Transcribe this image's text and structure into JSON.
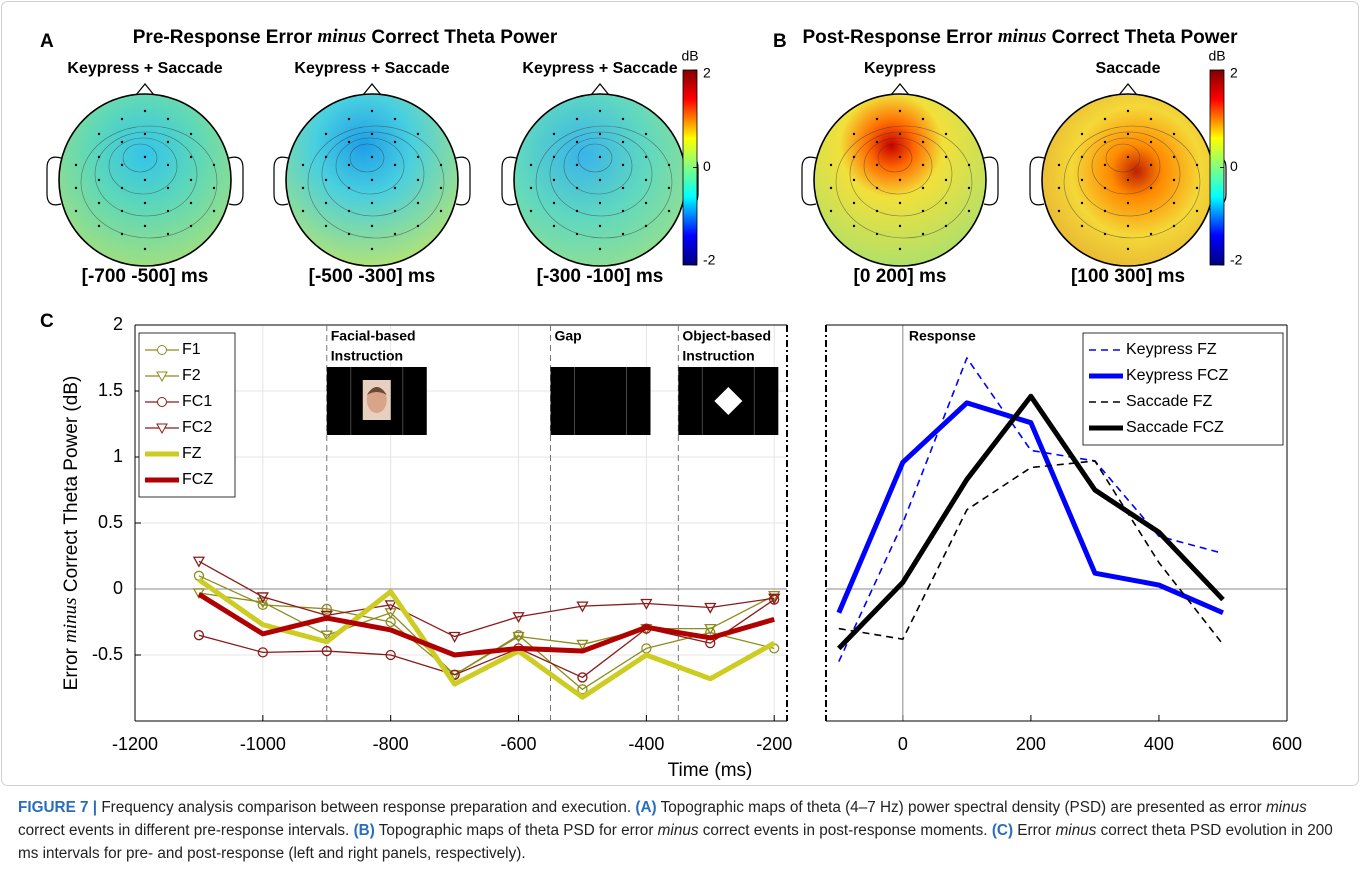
{
  "panels": [
    {
      "label": "A",
      "title": [
        "Pre-Response Error ",
        "minus",
        " Correct Theta Power"
      ],
      "maps": [
        {
          "heading": "Keypress + Saccade",
          "interval": "[-700 -500] ms"
        },
        {
          "heading": "Keypress + Saccade",
          "interval": "[-500 -300] ms"
        },
        {
          "heading": "Keypress + Saccade",
          "interval": "[-300 -100] ms"
        }
      ],
      "colorbar": {
        "unit": "dB",
        "lim": [
          -2,
          2
        ],
        "ticks": [
          2,
          0,
          -2
        ]
      }
    },
    {
      "label": "B",
      "title": [
        "Post-Response Error ",
        "minus",
        " Correct Theta Power"
      ],
      "maps": [
        {
          "heading": "Keypress",
          "interval": "[0 200] ms"
        },
        {
          "heading": "Saccade",
          "interval": "[100 300] ms"
        }
      ],
      "colorbar": {
        "unit": "dB",
        "lim": [
          -2,
          2
        ],
        "ticks": [
          2,
          0,
          -2
        ]
      }
    }
  ],
  "chart_data": [
    {
      "type": "line",
      "panel_label": "C",
      "ylabel": [
        "Error ",
        "minus",
        " Correct Theta Power (dB)"
      ],
      "xlabel": "Time (ms)",
      "xlim": [
        -1200,
        -180
      ],
      "ylim": [
        -1,
        2
      ],
      "xticks": [
        -1200,
        -1000,
        -800,
        -600,
        -400,
        -200
      ],
      "yticks": [
        -0.5,
        0,
        0.5,
        1,
        1.5,
        2
      ],
      "grid": true,
      "legend": "upper left",
      "events": [
        {
          "label": [
            "Facial-based",
            "Instruction"
          ],
          "x": -900
        },
        {
          "label": [
            "Gap"
          ],
          "x": -550
        },
        {
          "label": [
            "Object-based",
            "Instruction"
          ],
          "x": -350
        }
      ],
      "series": [
        {
          "name": "F1",
          "color": "#8c8c1e",
          "marker": "o",
          "linewidth": 1.3,
          "x": [
            -1100,
            -1000,
            -900,
            -800,
            -700,
            -600,
            -500,
            -400,
            -300,
            -200
          ],
          "values": [
            0.1,
            -0.12,
            -0.15,
            -0.25,
            -0.65,
            -0.35,
            -0.76,
            -0.45,
            -0.33,
            -0.45
          ]
        },
        {
          "name": "F2",
          "color": "#8c8c1e",
          "marker": "v",
          "linewidth": 1.3,
          "x": [
            -1100,
            -1000,
            -900,
            -800,
            -700,
            -600,
            -500,
            -400,
            -300,
            -200
          ],
          "values": [
            -0.03,
            -0.1,
            -0.35,
            -0.18,
            -0.65,
            -0.36,
            -0.42,
            -0.3,
            -0.3,
            -0.05
          ]
        },
        {
          "name": "FC1",
          "color": "#8b1a1a",
          "marker": "o",
          "linewidth": 1.3,
          "x": [
            -1100,
            -1000,
            -900,
            -800,
            -700,
            -600,
            -500,
            -400,
            -300,
            -200
          ],
          "values": [
            -0.35,
            -0.48,
            -0.47,
            -0.5,
            -0.65,
            -0.45,
            -0.67,
            -0.3,
            -0.41,
            -0.08
          ]
        },
        {
          "name": "FC2",
          "color": "#8b1a1a",
          "marker": "v",
          "linewidth": 1.3,
          "x": [
            -1100,
            -1000,
            -900,
            -800,
            -700,
            -600,
            -500,
            -400,
            -300,
            -200
          ],
          "values": [
            0.21,
            -0.06,
            -0.2,
            -0.12,
            -0.36,
            -0.21,
            -0.13,
            -0.11,
            -0.14,
            -0.07
          ]
        },
        {
          "name": "FZ",
          "color": "#cccc22",
          "linewidth": 5,
          "x": [
            -1100,
            -1000,
            -900,
            -800,
            -700,
            -600,
            -500,
            -400,
            -300,
            -200
          ],
          "values": [
            0.07,
            -0.27,
            -0.4,
            -0.02,
            -0.72,
            -0.47,
            -0.82,
            -0.5,
            -0.68,
            -0.41
          ]
        },
        {
          "name": "FCZ",
          "color": "#b00000",
          "linewidth": 5,
          "x": [
            -1100,
            -1000,
            -900,
            -800,
            -700,
            -600,
            -500,
            -400,
            -300,
            -200
          ],
          "values": [
            -0.04,
            -0.34,
            -0.22,
            -0.31,
            -0.5,
            -0.45,
            -0.47,
            -0.29,
            -0.37,
            -0.23
          ]
        }
      ]
    },
    {
      "type": "line",
      "annotation": "Response",
      "xlim": [
        -120,
        600
      ],
      "ylim": [
        -1,
        2
      ],
      "xticks": [
        0,
        200,
        400,
        600
      ],
      "grid": false,
      "legend": "upper right",
      "series": [
        {
          "name": "Keypress FZ",
          "color": "#0000ff",
          "dash": true,
          "linewidth": 1.6,
          "x": [
            -100,
            0,
            100,
            200,
            300,
            400,
            500
          ],
          "values": [
            -0.55,
            0.5,
            1.75,
            1.05,
            0.97,
            0.4,
            0.27
          ]
        },
        {
          "name": "Keypress FCZ",
          "color": "#0000ff",
          "linewidth": 5,
          "x": [
            -100,
            0,
            100,
            200,
            300,
            400,
            500
          ],
          "values": [
            -0.18,
            0.96,
            1.41,
            1.26,
            0.12,
            0.03,
            -0.18
          ]
        },
        {
          "name": "Saccade FZ",
          "color": "#000000",
          "dash": true,
          "linewidth": 1.6,
          "x": [
            -100,
            0,
            100,
            200,
            300,
            400,
            500
          ],
          "values": [
            -0.3,
            -0.38,
            0.6,
            0.92,
            0.97,
            0.2,
            -0.42
          ]
        },
        {
          "name": "Saccade FCZ",
          "color": "#000000",
          "linewidth": 5,
          "x": [
            -100,
            0,
            100,
            200,
            300,
            400,
            500
          ],
          "values": [
            -0.45,
            0.05,
            0.83,
            1.46,
            0.75,
            0.43,
            -0.08
          ]
        }
      ]
    }
  ],
  "caption": [
    {
      "text": "FIGURE 7 |",
      "style": "bold"
    },
    {
      "text": " Frequency analysis comparison between response preparation and execution. ",
      "style": "normal"
    },
    {
      "text": "(A)",
      "style": "bold"
    },
    {
      "text": " Topographic maps of theta (4–7 Hz) power spectral density (PSD) are presented as error ",
      "style": "normal"
    },
    {
      "text": "minus",
      "style": "italic"
    },
    {
      "text": " correct events in different pre-response intervals. ",
      "style": "normal"
    },
    {
      "text": "(B)",
      "style": "bold"
    },
    {
      "text": " Topographic maps of theta PSD for error ",
      "style": "normal"
    },
    {
      "text": "minus",
      "style": "italic"
    },
    {
      "text": " correct events in post-response moments. ",
      "style": "normal"
    },
    {
      "text": "(C)",
      "style": "bold"
    },
    {
      "text": " Error ",
      "style": "normal"
    },
    {
      "text": "minus",
      "style": "italic"
    },
    {
      "text": " correct theta PSD evolution in 200 ms intervals for pre- and post-response (left and right panels, respectively).",
      "style": "normal"
    }
  ]
}
